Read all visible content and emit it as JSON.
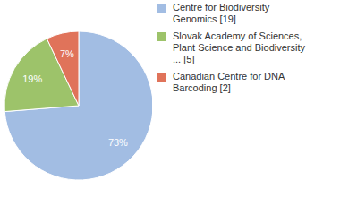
{
  "chart_data": {
    "type": "pie",
    "categories": [
      "Centre for Biodiversity Genomics [19]",
      "Slovak Academy of Sciences, Plant Science and Biodiversity ... [5]",
      "Canadian Centre for DNA Barcoding [2]"
    ],
    "values": [
      73,
      19,
      7
    ],
    "value_labels": [
      "73%",
      "19%",
      "7%"
    ],
    "colors": [
      "#a2bde3",
      "#9dc36a",
      "#e0735a"
    ],
    "data_labels": true,
    "legend": "right"
  }
}
